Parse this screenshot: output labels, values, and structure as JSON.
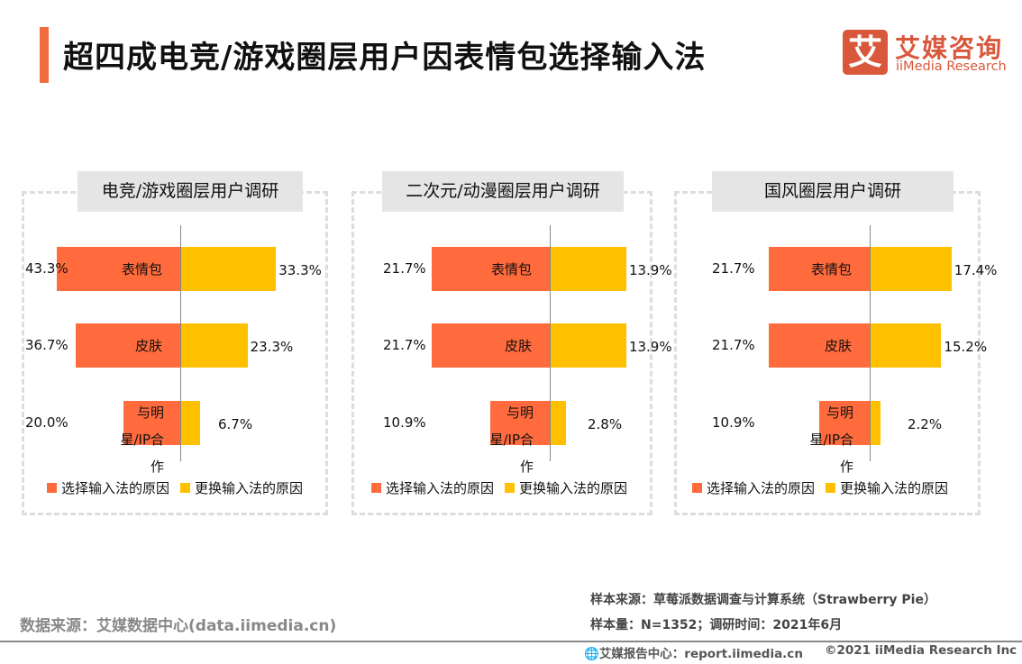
{
  "title": "超四成电竞/游戏圈层用户因表情包选择输入法",
  "logo": {
    "mark": "艾",
    "cn": "艾媒咨询",
    "en": "iiMedia Research"
  },
  "colors": {
    "choose": "#ff6b3d",
    "switch": "#ffc000",
    "accent": "#f26b3a"
  },
  "chart_data": [
    {
      "type": "bar",
      "title": "电竞/游戏圈层用户调研",
      "categories": [
        "表情包",
        "皮肤",
        "与明星/IP合作"
      ],
      "series": [
        {
          "name": "选择输入法的原因",
          "values": [
            43.3,
            36.7,
            20.0
          ]
        },
        {
          "name": "更换输入法的原因",
          "values": [
            33.3,
            23.3,
            6.7
          ]
        }
      ],
      "legend": "bottom"
    },
    {
      "type": "bar",
      "title": "二次元/动漫圈层用户调研",
      "categories": [
        "表情包",
        "皮肤",
        "与明星/IP合作"
      ],
      "series": [
        {
          "name": "选择输入法的原因",
          "values": [
            21.7,
            21.7,
            10.9
          ]
        },
        {
          "name": "更换输入法的原因",
          "values": [
            13.9,
            13.9,
            2.8
          ]
        }
      ],
      "legend": "bottom"
    },
    {
      "type": "bar",
      "title": "国风圈层用户调研",
      "categories": [
        "表情包",
        "皮肤",
        "与明星/IP合作"
      ],
      "series": [
        {
          "name": "选择输入法的原因",
          "values": [
            21.7,
            21.7,
            10.9
          ]
        },
        {
          "name": "更换输入法的原因",
          "values": [
            17.4,
            15.2,
            2.2
          ]
        }
      ],
      "legend": "bottom"
    }
  ],
  "footer": {
    "source": "数据来源：艾媒数据中心(data.iimedia.cn)",
    "sample_source": "样本来源：草莓派数据调查与计算系统（Strawberry Pie）",
    "sample_size": "样本量：N=1352；调研时间：2021年6月",
    "report": "艾媒报告中心：report.iimedia.cn",
    "copyright": "©2021  iiMedia Research  Inc"
  }
}
